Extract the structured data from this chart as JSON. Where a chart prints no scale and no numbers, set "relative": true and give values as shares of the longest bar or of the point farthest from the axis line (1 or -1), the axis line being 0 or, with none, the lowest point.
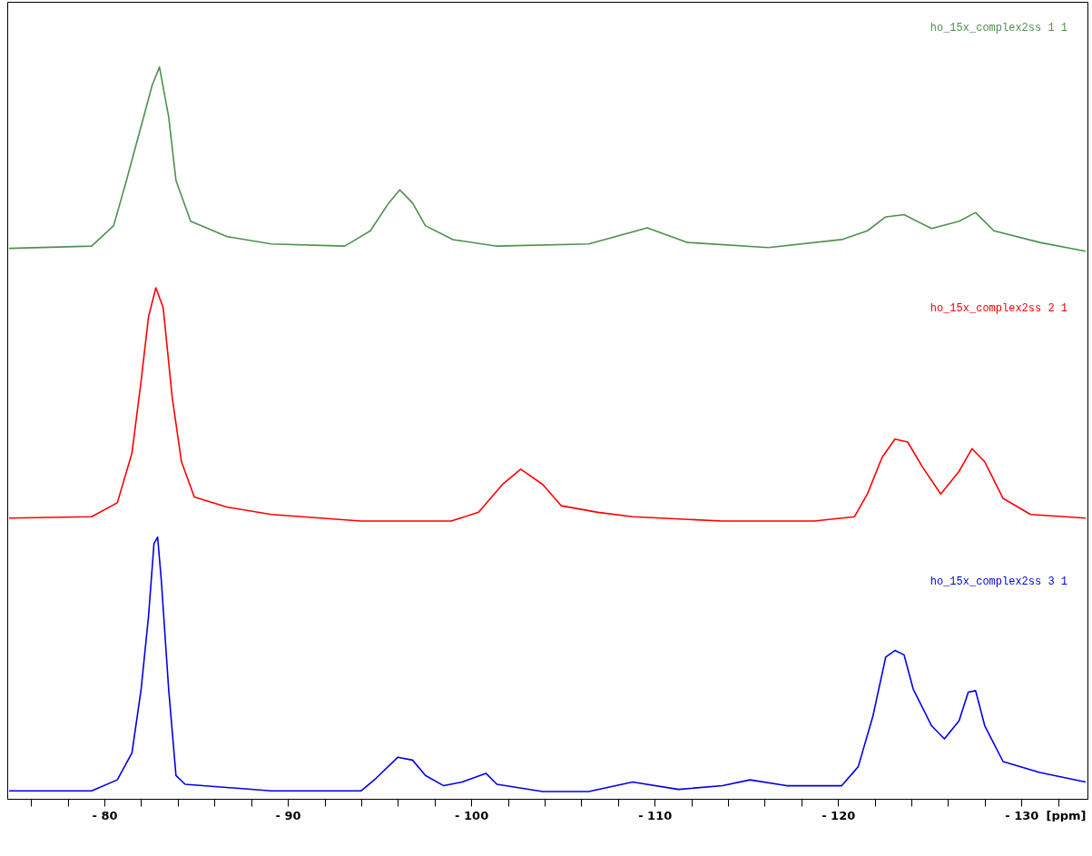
{
  "chart_data": {
    "type": "line",
    "relative": true,
    "xlabel": "[ppm]",
    "xlim": [
      -74.7,
      -133.6
    ],
    "xticks": [
      {
        "value": -76,
        "label": null
      },
      {
        "value": -78,
        "label": null
      },
      {
        "value": -80,
        "label": "- 80"
      },
      {
        "value": -82,
        "label": null
      },
      {
        "value": -84,
        "label": null
      },
      {
        "value": -86,
        "label": null
      },
      {
        "value": -88,
        "label": null
      },
      {
        "value": -90,
        "label": "- 90"
      },
      {
        "value": -92,
        "label": null
      },
      {
        "value": -94,
        "label": null
      },
      {
        "value": -96,
        "label": null
      },
      {
        "value": -98,
        "label": null
      },
      {
        "value": -100,
        "label": "- 100"
      },
      {
        "value": -102,
        "label": null
      },
      {
        "value": -104,
        "label": null
      },
      {
        "value": -106,
        "label": null
      },
      {
        "value": -108,
        "label": null
      },
      {
        "value": -110,
        "label": "- 110"
      },
      {
        "value": -112,
        "label": null
      },
      {
        "value": -114,
        "label": null
      },
      {
        "value": -116,
        "label": null
      },
      {
        "value": -118,
        "label": null
      },
      {
        "value": -120,
        "label": "- 120"
      },
      {
        "value": -122,
        "label": null
      },
      {
        "value": -124,
        "label": null
      },
      {
        "value": -126,
        "label": null
      },
      {
        "value": -128,
        "label": null
      },
      {
        "value": -130,
        "label": "- 130"
      },
      {
        "value": -132,
        "label": null
      }
    ],
    "series": [
      {
        "name": "ho_15x_complex2ss  1  1",
        "color": "#4f8f4f",
        "x": [
          -74.8,
          -79.3,
          -80.5,
          -81.2,
          -82.0,
          -82.6,
          -83.0,
          -83.5,
          -83.9,
          -84.7,
          -86.7,
          -89.1,
          -93.1,
          -94.5,
          -95.5,
          -96.1,
          -96.8,
          -97.5,
          -99.0,
          -101.4,
          -106.4,
          -109.6,
          -111.8,
          -116.2,
          -120.2,
          -121.6,
          -122.6,
          -123.6,
          -125.1,
          -126.6,
          -127.5,
          -128.5,
          -131.0,
          -133.5
        ],
        "values": [
          0.752,
          0.755,
          0.783,
          0.845,
          0.919,
          0.975,
          1.0,
          0.932,
          0.845,
          0.789,
          0.768,
          0.758,
          0.755,
          0.776,
          0.814,
          0.832,
          0.814,
          0.783,
          0.764,
          0.755,
          0.758,
          0.78,
          0.76,
          0.753,
          0.764,
          0.776,
          0.795,
          0.798,
          0.779,
          0.789,
          0.801,
          0.776,
          0.76,
          0.748
        ]
      },
      {
        "name": "ho_15x_complex2ss  2  1",
        "color": "#ff0000",
        "x": [
          -74.8,
          -79.3,
          -80.7,
          -81.5,
          -82.0,
          -82.4,
          -82.8,
          -83.2,
          -83.7,
          -84.2,
          -84.9,
          -86.7,
          -89.1,
          -94.0,
          -98.9,
          -100.4,
          -101.7,
          -102.7,
          -103.9,
          -104.9,
          -106.9,
          -108.8,
          -113.7,
          -118.7,
          -120.9,
          -121.6,
          -122.4,
          -123.1,
          -123.8,
          -124.6,
          -125.6,
          -126.6,
          -127.3,
          -128.0,
          -129.0,
          -130.5,
          -133.5
        ],
        "values": [
          0.383,
          0.385,
          0.404,
          0.472,
          0.571,
          0.658,
          0.698,
          0.671,
          0.547,
          0.46,
          0.412,
          0.398,
          0.388,
          0.379,
          0.379,
          0.391,
          0.429,
          0.45,
          0.429,
          0.4,
          0.391,
          0.385,
          0.379,
          0.379,
          0.385,
          0.416,
          0.466,
          0.491,
          0.487,
          0.453,
          0.416,
          0.447,
          0.478,
          0.46,
          0.41,
          0.388,
          0.383
        ]
      },
      {
        "name": "ho_15x_complex2ss  3  1",
        "color": "#0000e6",
        "x": [
          -74.8,
          -79.3,
          -80.7,
          -81.5,
          -82.0,
          -82.4,
          -82.7,
          -82.9,
          -83.1,
          -83.5,
          -83.9,
          -84.4,
          -89.1,
          -94.0,
          -94.8,
          -96.0,
          -96.8,
          -97.5,
          -98.5,
          -99.5,
          -100.8,
          -101.4,
          -103.9,
          -106.4,
          -108.8,
          -111.3,
          -113.7,
          -115.2,
          -117.2,
          -120.2,
          -121.1,
          -121.9,
          -122.6,
          -123.1,
          -123.6,
          -124.1,
          -125.1,
          -125.8,
          -126.6,
          -127.1,
          -127.5,
          -128.0,
          -129.0,
          -131.0,
          -133.5
        ],
        "values": [
          0.01,
          0.01,
          0.025,
          0.062,
          0.149,
          0.248,
          0.348,
          0.357,
          0.298,
          0.149,
          0.031,
          0.019,
          0.01,
          0.01,
          0.027,
          0.056,
          0.052,
          0.031,
          0.017,
          0.022,
          0.034,
          0.019,
          0.009,
          0.009,
          0.022,
          0.012,
          0.017,
          0.025,
          0.017,
          0.017,
          0.043,
          0.112,
          0.193,
          0.202,
          0.196,
          0.149,
          0.099,
          0.081,
          0.106,
          0.145,
          0.147,
          0.099,
          0.05,
          0.035,
          0.022
        ]
      }
    ]
  }
}
